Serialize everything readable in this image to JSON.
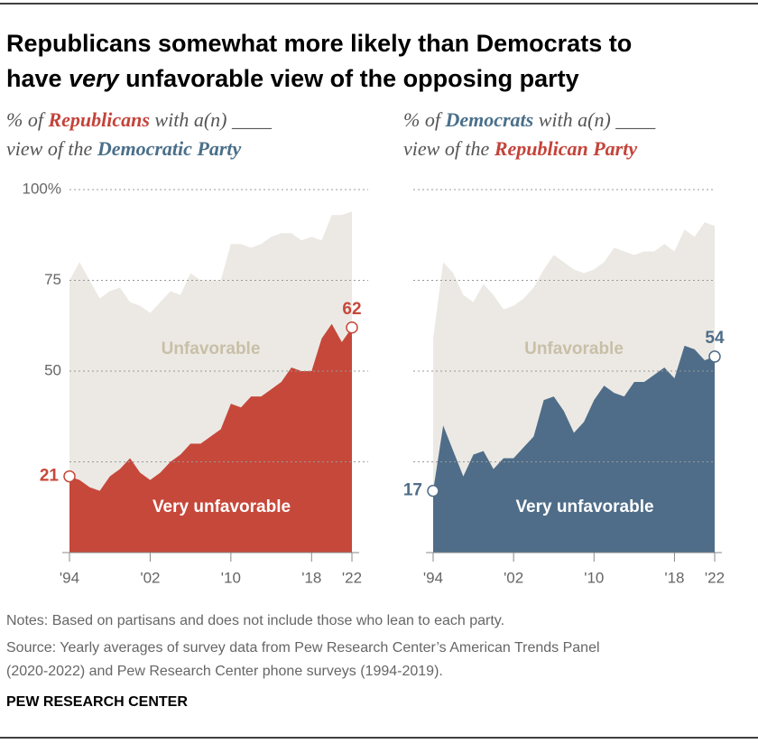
{
  "title": [
    "Republicans somewhat more likely than Democrats to",
    "have ",
    "very",
    " unfavorable view of the opposing party"
  ],
  "chart_data": [
    {
      "type": "area",
      "subtitle": [
        "% of ",
        "Republicans",
        " with a(n) ____",
        "view of the ",
        "Democratic Party"
      ],
      "subtitle_colors": [
        "#c4433a",
        "#4a6f8a"
      ],
      "x": [
        1994,
        1995,
        1996,
        1997,
        1998,
        1999,
        2000,
        2001,
        2002,
        2003,
        2004,
        2005,
        2006,
        2007,
        2008,
        2009,
        2010,
        2011,
        2012,
        2013,
        2014,
        2015,
        2016,
        2017,
        2018,
        2019,
        2020,
        2021,
        2022
      ],
      "xlim": [
        1994,
        2022
      ],
      "xticks": [
        {
          "value": 1994,
          "label": "'94"
        },
        {
          "value": 2002,
          "label": "'02"
        },
        {
          "value": 2010,
          "label": "'10"
        },
        {
          "value": 2018,
          "label": "'18"
        },
        {
          "value": 2022,
          "label": "'22"
        }
      ],
      "ylim": [
        0,
        100
      ],
      "yticks": [
        {
          "value": 100,
          "label": "100%"
        },
        75,
        50
      ],
      "gridlines": [
        25,
        50,
        75,
        100
      ],
      "series": [
        {
          "name": "Unfavorable",
          "color": "#ece9e4",
          "label_color": "#c8bfa8",
          "values": [
            75,
            80,
            75,
            70,
            72,
            73,
            69,
            68,
            66,
            69,
            72,
            71,
            77,
            75,
            75,
            75,
            85,
            85,
            84,
            85,
            87,
            88,
            88,
            86,
            87,
            86,
            93,
            93,
            94
          ]
        },
        {
          "name": "Very unfavorable",
          "color": "#c6483a",
          "label_color": "#ffffff",
          "values": [
            21,
            20,
            18,
            17,
            21,
            23,
            26,
            22,
            20,
            22,
            25,
            27,
            30,
            30,
            32,
            34,
            41,
            40,
            43,
            43,
            45,
            47,
            51,
            50,
            50,
            59,
            63,
            58,
            62
          ]
        }
      ]
    },
    {
      "type": "area",
      "subtitle": [
        "% of ",
        "Democrats",
        " with a(n) ____",
        "view of the ",
        "Republican Party"
      ],
      "subtitle_colors": [
        "#4a6f8a",
        "#c4433a"
      ],
      "x": [
        1994,
        1995,
        1996,
        1997,
        1998,
        1999,
        2000,
        2001,
        2002,
        2003,
        2004,
        2005,
        2006,
        2007,
        2008,
        2009,
        2010,
        2011,
        2012,
        2013,
        2014,
        2015,
        2016,
        2017,
        2018,
        2019,
        2020,
        2021,
        2022
      ],
      "xlim": [
        1994,
        2022
      ],
      "xticks": [
        {
          "value": 1994,
          "label": "'94"
        },
        {
          "value": 2002,
          "label": "'02"
        },
        {
          "value": 2010,
          "label": "'10"
        },
        {
          "value": 2018,
          "label": "'18"
        },
        {
          "value": 2022,
          "label": "'22"
        }
      ],
      "ylim": [
        0,
        100
      ],
      "yticks": [],
      "gridlines": [
        25,
        50,
        75,
        100
      ],
      "series": [
        {
          "name": "Unfavorable",
          "color": "#ece9e4",
          "label_color": "#c8bfa8",
          "values": [
            59,
            80,
            77,
            71,
            69,
            74,
            71,
            67,
            68,
            70,
            73,
            78,
            82,
            80,
            78,
            77,
            78,
            80,
            84,
            83,
            82,
            83,
            83,
            85,
            83,
            89,
            87,
            91,
            90
          ]
        },
        {
          "name": "Very unfavorable",
          "color": "#4f6d88",
          "label_color": "#ffffff",
          "values": [
            17,
            35,
            28,
            21,
            27,
            28,
            23,
            26,
            26,
            29,
            32,
            42,
            43,
            39,
            33,
            36,
            42,
            46,
            44,
            43,
            47,
            47,
            49,
            51,
            48,
            57,
            56,
            53,
            54
          ]
        }
      ]
    }
  ],
  "notes": "Notes: Based on partisans and does not include those who lean to each party.",
  "source": [
    "Source: Yearly averages of survey data from Pew Research Center’s American Trends Panel",
    "(2020-2022) and Pew Research Center phone surveys (1994-2019)."
  ],
  "footer": "PEW RESEARCH CENTER"
}
